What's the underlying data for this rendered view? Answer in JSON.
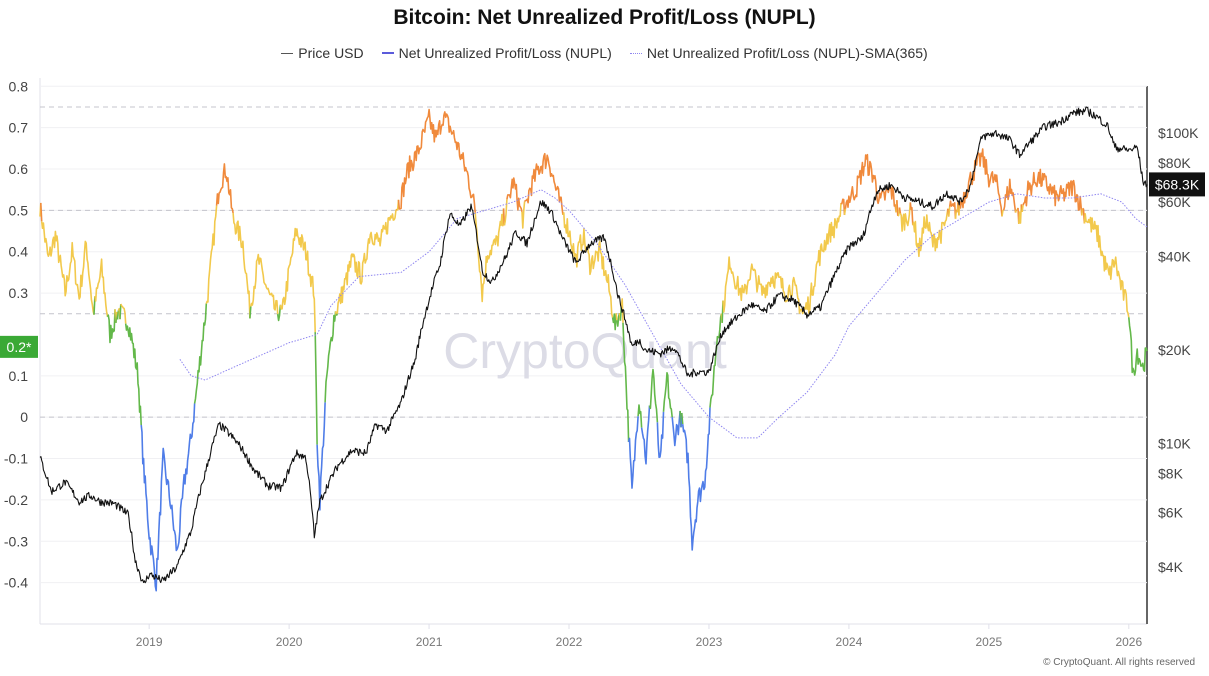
{
  "chart_data": {
    "type": "line",
    "title": "Bitcoin: Net Unrealized Profit/Loss (NUPL)",
    "legend": [
      {
        "name": "Price USD",
        "color": "#555555",
        "style": "solid"
      },
      {
        "name": "Net Unrealized Profit/Loss (NUPL)",
        "color": "#5b5bdb",
        "style": "solid"
      },
      {
        "name": "Net Unrealized Profit/Loss (NUPL)-SMA(365)",
        "color": "#8f86f0",
        "style": "dotted"
      }
    ],
    "legend_position": "top-center",
    "x_ticks": [
      "2019",
      "2020",
      "2021",
      "2022",
      "2023",
      "2024",
      "2025",
      "2026"
    ],
    "x_range": [
      2018.22,
      2026.13
    ],
    "y_left": {
      "ticks": [
        "0.8",
        "0.7",
        "0.6",
        "0.5",
        "0.4",
        "0.3",
        "0.1",
        "0",
        "-0.1",
        "-0.2",
        "-0.3",
        "-0.4"
      ],
      "tick_values": [
        0.8,
        0.7,
        0.6,
        0.5,
        0.4,
        0.3,
        0.1,
        0,
        -0.1,
        -0.2,
        -0.3,
        -0.4
      ],
      "range": [
        -0.5,
        0.82
      ],
      "highlight_label": "0.2*",
      "highlight_value": 0.17,
      "highlight_color": "#3aa935"
    },
    "y_right": {
      "scale": "log",
      "ticks": [
        "$100K",
        "$80K",
        "$60K",
        "$40K",
        "$20K",
        "$10K",
        "$8K",
        "$6K",
        "$4K"
      ],
      "tick_values": [
        100000,
        80000,
        60000,
        40000,
        20000,
        10000,
        8000,
        6000,
        4000
      ],
      "current_label": "$68.3K",
      "current_value": 68300
    },
    "reference_lines": [
      0.75,
      0.5,
      0.25,
      0
    ],
    "zone_colors": {
      "above_0.5": "#f08a3c",
      "0.25_to_0.5": "#f2c94c",
      "0_to_0.25": "#63b84a",
      "below_0": "#4f7de8"
    },
    "series": [
      {
        "name": "Net Unrealized Profit/Loss (NUPL)",
        "x": [
          2018.22,
          2018.28,
          2018.33,
          2018.4,
          2018.45,
          2018.5,
          2018.55,
          2018.6,
          2018.66,
          2018.72,
          2018.78,
          2018.85,
          2018.88,
          2018.92,
          2018.96,
          2019.0,
          2019.05,
          2019.1,
          2019.15,
          2019.2,
          2019.25,
          2019.3,
          2019.35,
          2019.42,
          2019.5,
          2019.55,
          2019.6,
          2019.67,
          2019.72,
          2019.78,
          2019.85,
          2019.9,
          2019.95,
          2020.0,
          2020.05,
          2020.12,
          2020.18,
          2020.2,
          2020.22,
          2020.27,
          2020.32,
          2020.38,
          2020.45,
          2020.52,
          2020.58,
          2020.65,
          2020.72,
          2020.8,
          2020.85,
          2020.92,
          2021.0,
          2021.05,
          2021.1,
          2021.15,
          2021.2,
          2021.28,
          2021.33,
          2021.38,
          2021.42,
          2021.48,
          2021.55,
          2021.6,
          2021.67,
          2021.72,
          2021.78,
          2021.85,
          2021.9,
          2021.95,
          2022.0,
          2022.05,
          2022.1,
          2022.15,
          2022.22,
          2022.28,
          2022.33,
          2022.38,
          2022.42,
          2022.45,
          2022.5,
          2022.55,
          2022.6,
          2022.65,
          2022.7,
          2022.75,
          2022.8,
          2022.85,
          2022.88,
          2022.92,
          2022.97,
          2023.02,
          2023.06,
          2023.1,
          2023.15,
          2023.2,
          2023.25,
          2023.3,
          2023.38,
          2023.45,
          2023.5,
          2023.55,
          2023.6,
          2023.67,
          2023.72,
          2023.78,
          2023.85,
          2023.9,
          2023.95,
          2024.0,
          2024.05,
          2024.12,
          2024.18,
          2024.22,
          2024.3,
          2024.38,
          2024.45,
          2024.5,
          2024.55,
          2024.6,
          2024.67,
          2024.72,
          2024.78,
          2024.85,
          2024.9,
          2024.95,
          2025.0,
          2025.05,
          2025.1,
          2025.15,
          2025.22,
          2025.28,
          2025.35,
          2025.42,
          2025.48,
          2025.55,
          2025.6,
          2025.67,
          2025.72,
          2025.78,
          2025.82,
          2025.86,
          2025.9,
          2025.95,
          2026.0,
          2026.03,
          2026.06,
          2026.08,
          2026.1,
          2026.13
        ],
        "y": [
          0.51,
          0.38,
          0.44,
          0.3,
          0.4,
          0.29,
          0.42,
          0.25,
          0.36,
          0.2,
          0.26,
          0.23,
          0.18,
          0.1,
          -0.12,
          -0.28,
          -0.4,
          -0.1,
          -0.2,
          -0.33,
          -0.16,
          -0.05,
          0.1,
          0.3,
          0.56,
          0.6,
          0.48,
          0.42,
          0.26,
          0.38,
          0.3,
          0.26,
          0.25,
          0.35,
          0.45,
          0.4,
          0.3,
          -0.05,
          -0.2,
          0.1,
          0.24,
          0.3,
          0.38,
          0.34,
          0.45,
          0.42,
          0.48,
          0.53,
          0.6,
          0.64,
          0.72,
          0.67,
          0.73,
          0.7,
          0.66,
          0.58,
          0.5,
          0.3,
          0.4,
          0.42,
          0.5,
          0.57,
          0.48,
          0.55,
          0.6,
          0.63,
          0.56,
          0.5,
          0.45,
          0.38,
          0.44,
          0.37,
          0.4,
          0.32,
          0.22,
          0.27,
          0.0,
          -0.18,
          0.05,
          -0.1,
          0.12,
          -0.12,
          0.1,
          -0.05,
          0.0,
          -0.1,
          -0.3,
          -0.2,
          -0.15,
          0.05,
          0.2,
          0.26,
          0.38,
          0.32,
          0.29,
          0.36,
          0.3,
          0.34,
          0.33,
          0.3,
          0.32,
          0.25,
          0.28,
          0.38,
          0.44,
          0.46,
          0.5,
          0.53,
          0.55,
          0.62,
          0.58,
          0.52,
          0.55,
          0.47,
          0.5,
          0.4,
          0.48,
          0.42,
          0.45,
          0.5,
          0.5,
          0.56,
          0.6,
          0.63,
          0.58,
          0.57,
          0.5,
          0.56,
          0.48,
          0.55,
          0.58,
          0.56,
          0.53,
          0.54,
          0.56,
          0.5,
          0.47,
          0.44,
          0.38,
          0.34,
          0.38,
          0.31,
          0.26,
          0.1,
          0.16,
          0.14,
          0.12,
          0.16
        ],
        "style": "solid, colored by zone"
      },
      {
        "name": "Net Unrealized Profit/Loss (NUPL)-SMA(365)",
        "x": [
          2019.22,
          2019.3,
          2019.4,
          2019.6,
          2019.8,
          2020.0,
          2020.2,
          2020.3,
          2020.5,
          2020.8,
          2021.0,
          2021.2,
          2021.4,
          2021.6,
          2021.8,
          2021.9,
          2022.0,
          2022.2,
          2022.4,
          2022.6,
          2022.8,
          2023.0,
          2023.2,
          2023.35,
          2023.5,
          2023.7,
          2023.9,
          2024.0,
          2024.2,
          2024.4,
          2024.6,
          2024.8,
          2025.0,
          2025.2,
          2025.4,
          2025.6,
          2025.8,
          2025.95,
          2026.05,
          2026.13
        ],
        "y": [
          0.14,
          0.1,
          0.09,
          0.12,
          0.15,
          0.18,
          0.2,
          0.27,
          0.34,
          0.35,
          0.4,
          0.48,
          0.5,
          0.52,
          0.55,
          0.53,
          0.5,
          0.42,
          0.32,
          0.2,
          0.08,
          0.0,
          -0.05,
          -0.05,
          0.0,
          0.06,
          0.15,
          0.22,
          0.3,
          0.38,
          0.44,
          0.48,
          0.52,
          0.54,
          0.53,
          0.53,
          0.54,
          0.52,
          0.48,
          0.46
        ],
        "style": "dotted"
      },
      {
        "name": "Price USD",
        "axis": "right",
        "x": [
          2018.22,
          2018.3,
          2018.4,
          2018.5,
          2018.58,
          2018.65,
          2018.75,
          2018.85,
          2018.9,
          2018.96,
          2019.0,
          2019.1,
          2019.2,
          2019.3,
          2019.4,
          2019.5,
          2019.55,
          2019.65,
          2019.75,
          2019.85,
          2019.95,
          2020.05,
          2020.12,
          2020.18,
          2020.22,
          2020.35,
          2020.45,
          2020.55,
          2020.62,
          2020.7,
          2020.8,
          2020.9,
          2021.0,
          2021.08,
          2021.15,
          2021.22,
          2021.3,
          2021.38,
          2021.45,
          2021.55,
          2021.62,
          2021.7,
          2021.8,
          2021.87,
          2021.95,
          2022.05,
          2022.15,
          2022.25,
          2022.35,
          2022.45,
          2022.5,
          2022.55,
          2022.65,
          2022.75,
          2022.85,
          2022.9,
          2023.0,
          2023.1,
          2023.2,
          2023.3,
          2023.4,
          2023.5,
          2023.6,
          2023.7,
          2023.8,
          2023.9,
          2024.0,
          2024.1,
          2024.2,
          2024.3,
          2024.4,
          2024.5,
          2024.6,
          2024.7,
          2024.8,
          2024.87,
          2024.95,
          2025.05,
          2025.15,
          2025.22,
          2025.3,
          2025.4,
          2025.5,
          2025.6,
          2025.7,
          2025.78,
          2025.85,
          2025.9,
          2026.0,
          2026.06,
          2026.1,
          2026.13
        ],
        "y": [
          9000,
          7000,
          7500,
          6500,
          6800,
          6500,
          6400,
          5900,
          4200,
          3500,
          3800,
          3600,
          4000,
          5200,
          8000,
          11500,
          11000,
          9800,
          8200,
          7300,
          7200,
          9300,
          9000,
          5000,
          6500,
          8500,
          9500,
          9300,
          11500,
          11000,
          13500,
          18500,
          29000,
          38000,
          55000,
          50000,
          58000,
          36000,
          33000,
          40000,
          48000,
          44000,
          60000,
          56000,
          46000,
          38000,
          44000,
          46000,
          30000,
          20500,
          21500,
          20000,
          19500,
          20500,
          16500,
          17000,
          17000,
          23000,
          25500,
          28000,
          26500,
          30000,
          29000,
          26000,
          27500,
          35000,
          43000,
          46000,
          65000,
          68000,
          62000,
          60000,
          58000,
          64000,
          60000,
          68000,
          97000,
          100000,
          95000,
          85000,
          94000,
          105000,
          108000,
          116000,
          118000,
          112000,
          105000,
          90000,
          88000,
          90000,
          70000,
          68300
        ]
      }
    ],
    "watermark": "CryptoQuant",
    "credit": "© CryptoQuant. All rights reserved"
  }
}
